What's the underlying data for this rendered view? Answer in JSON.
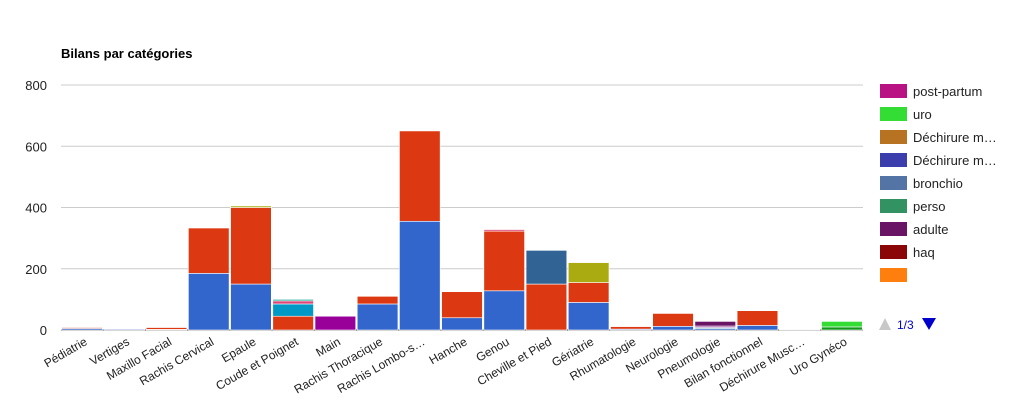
{
  "chart_data": {
    "type": "bar",
    "stacked": true,
    "title": "Bilans par catégories",
    "xlabel": "",
    "ylabel": "",
    "ylim": [
      0,
      800
    ],
    "yticks": [
      0,
      200,
      400,
      600,
      800
    ],
    "grid": true,
    "legend_position": "right",
    "categories": [
      "Pédiatrie",
      "Vertiges",
      "Maxillo Facial",
      "Rachis Cervical",
      "Epaule",
      "Coude et Poignet",
      "Main",
      "Rachis Thoracique",
      "Rachis Lombo-s…",
      "Hanche",
      "Genou",
      "Cheville et Pied",
      "Gériatrie",
      "Rhumatologie",
      "Neurologie",
      "Pneumologie",
      "Bilan fonctionnel",
      "Déchirure Musc…",
      "Uro Gynéco"
    ],
    "series": [
      {
        "color": "#3366cc",
        "values": [
          5,
          3,
          2,
          185,
          150,
          0,
          0,
          85,
          355,
          40,
          128,
          0,
          90,
          3,
          12,
          5,
          15,
          2,
          0
        ]
      },
      {
        "color": "#dc3912",
        "values": [
          3,
          1,
          6,
          148,
          250,
          45,
          0,
          25,
          295,
          85,
          195,
          150,
          65,
          8,
          42,
          0,
          48,
          0,
          0
        ]
      },
      {
        "color": "#ff9900",
        "values": [
          0,
          0,
          0,
          0,
          0,
          0,
          0,
          0,
          0,
          0,
          0,
          0,
          0,
          0,
          0,
          0,
          0,
          0,
          0
        ]
      },
      {
        "color": "#109618",
        "values": [
          0,
          0,
          0,
          0,
          0,
          0,
          0,
          0,
          0,
          0,
          0,
          0,
          0,
          0,
          0,
          0,
          0,
          0,
          10
        ]
      },
      {
        "color": "#990099",
        "values": [
          0,
          0,
          0,
          0,
          0,
          0,
          45,
          0,
          0,
          0,
          0,
          0,
          0,
          0,
          0,
          0,
          0,
          0,
          0
        ]
      },
      {
        "color": "#0099c6",
        "values": [
          0,
          0,
          0,
          0,
          0,
          40,
          0,
          0,
          0,
          0,
          0,
          0,
          0,
          0,
          0,
          0,
          0,
          0,
          0
        ]
      },
      {
        "color": "#dd4477",
        "values": [
          0,
          0,
          0,
          0,
          0,
          10,
          0,
          0,
          0,
          0,
          5,
          0,
          0,
          0,
          0,
          0,
          0,
          0,
          0
        ]
      },
      {
        "color": "#aaaa11",
        "values": [
          0,
          0,
          0,
          0,
          5,
          0,
          0,
          0,
          0,
          0,
          0,
          0,
          65,
          0,
          0,
          0,
          0,
          0,
          0
        ]
      },
      {
        "color": "#22aa99",
        "values": [
          0,
          0,
          0,
          0,
          0,
          5,
          0,
          0,
          0,
          0,
          0,
          0,
          0,
          0,
          0,
          3,
          0,
          0,
          0
        ]
      },
      {
        "color": "#994499",
        "values": [
          0,
          0,
          0,
          0,
          0,
          0,
          0,
          0,
          0,
          0,
          0,
          0,
          0,
          0,
          0,
          5,
          0,
          0,
          0
        ]
      },
      {
        "color": "#316395",
        "values": [
          0,
          0,
          0,
          0,
          0,
          0,
          0,
          0,
          0,
          0,
          0,
          110,
          0,
          0,
          0,
          0,
          0,
          0,
          0
        ]
      },
      {
        "color": "#8b0707",
        "values": [
          0,
          0,
          0,
          0,
          0,
          0,
          0,
          0,
          0,
          0,
          0,
          0,
          0,
          0,
          0,
          0,
          0,
          0,
          0
        ]
      },
      {
        "color": "#6a1466",
        "values": [
          0,
          0,
          0,
          0,
          0,
          0,
          0,
          0,
          0,
          0,
          0,
          0,
          0,
          0,
          0,
          15,
          0,
          0,
          0
        ]
      },
      {
        "color": "#329262",
        "values": [
          0,
          0,
          0,
          0,
          0,
          0,
          0,
          0,
          0,
          0,
          0,
          0,
          0,
          0,
          0,
          0,
          0,
          0,
          0
        ]
      },
      {
        "color": "#5574a6",
        "values": [
          0,
          0,
          0,
          0,
          0,
          0,
          0,
          0,
          0,
          0,
          0,
          0,
          0,
          0,
          0,
          0,
          0,
          0,
          0
        ]
      },
      {
        "color": "#3b3eac",
        "values": [
          0,
          0,
          0,
          0,
          0,
          0,
          0,
          0,
          0,
          0,
          0,
          0,
          0,
          0,
          0,
          0,
          0,
          0,
          0
        ]
      },
      {
        "color": "#b77322",
        "values": [
          0,
          0,
          0,
          0,
          0,
          0,
          0,
          0,
          0,
          0,
          0,
          0,
          0,
          0,
          0,
          0,
          0,
          0,
          0
        ]
      },
      {
        "color": "#33dd33",
        "values": [
          0,
          0,
          0,
          0,
          0,
          0,
          0,
          0,
          0,
          0,
          0,
          0,
          0,
          0,
          0,
          0,
          0,
          0,
          18
        ]
      },
      {
        "color": "#b91383",
        "values": [
          0,
          0,
          0,
          0,
          0,
          0,
          0,
          0,
          0,
          0,
          0,
          0,
          0,
          0,
          0,
          0,
          0,
          0,
          0
        ]
      }
    ],
    "legend": [
      {
        "name": "post-partum",
        "color": "#b91383"
      },
      {
        "name": "uro",
        "color": "#33dd33"
      },
      {
        "name": "Déchirure m…",
        "color": "#b77322"
      },
      {
        "name": "Déchirure m…",
        "color": "#3b3eac"
      },
      {
        "name": "bronchio",
        "color": "#5574a6"
      },
      {
        "name": "perso",
        "color": "#329262"
      },
      {
        "name": "adulte",
        "color": "#6a1466"
      },
      {
        "name": "haq",
        "color": "#8b0707"
      },
      {
        "name": "",
        "color": "#ff7f0e"
      }
    ],
    "legend_page": "1/3"
  }
}
